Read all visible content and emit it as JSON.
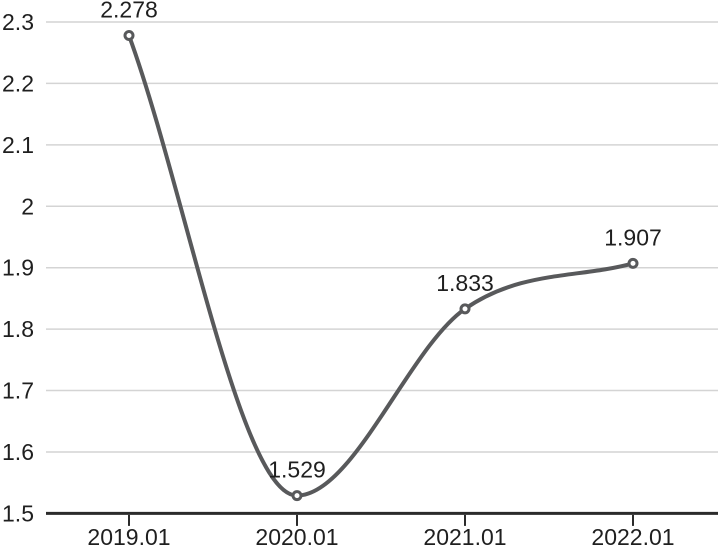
{
  "chart_data": {
    "type": "line",
    "title": "",
    "xlabel": "",
    "ylabel": "",
    "x": [
      "2019.01",
      "2020.01",
      "2021.01",
      "2022.01"
    ],
    "values": [
      2.278,
      1.529,
      1.833,
      1.907
    ],
    "point_labels": [
      "2.278",
      "1.529",
      "1.833",
      "1.907"
    ],
    "ylim": [
      1.5,
      2.3
    ],
    "y_ticks": [
      {
        "value": 2.3,
        "label": "2.3"
      },
      {
        "value": 2.2,
        "label": "2.2"
      },
      {
        "value": 2.1,
        "label": "2.1"
      },
      {
        "value": 2.0,
        "label": "2"
      },
      {
        "value": 1.9,
        "label": "1.9"
      },
      {
        "value": 1.8,
        "label": "1.8"
      },
      {
        "value": 1.7,
        "label": "1.7"
      },
      {
        "value": 1.6,
        "label": "1.6"
      },
      {
        "value": 1.5,
        "label": "1.5"
      }
    ],
    "grid": true,
    "legend_position": "none",
    "curve": "monotone",
    "marker": "open-circle",
    "colors": {
      "line": "#58595b",
      "marker_fill": "#ffffff",
      "gridline": "#d4d4d4",
      "axis": "#2b2b2b",
      "text": "#1f1f1f",
      "background": "#ffffff"
    }
  }
}
